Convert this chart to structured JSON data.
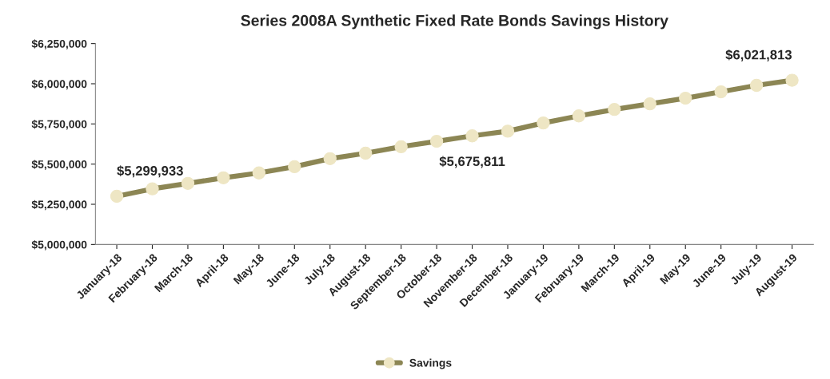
{
  "chart_data": {
    "type": "line",
    "title": "Series 2008A Synthetic Fixed Rate Bonds Savings History",
    "categories": [
      "January-18",
      "February-18",
      "March-18",
      "April-18",
      "May-18",
      "June-18",
      "July-18",
      "August-18",
      "September-18",
      "October-18",
      "November-18",
      "December-18",
      "January-19",
      "February-19",
      "March-19",
      "April-19",
      "May-19",
      "June-19",
      "July-19",
      "August-19"
    ],
    "series": [
      {
        "name": "Savings",
        "color": "#8c8654",
        "values": [
          5299933,
          5346000,
          5380000,
          5415000,
          5445000,
          5484000,
          5534000,
          5568000,
          5608000,
          5642000,
          5675811,
          5705000,
          5756000,
          5800000,
          5840000,
          5875000,
          5910000,
          5950000,
          5990000,
          6021813
        ],
        "value_labels": [
          "$5,299,933",
          null,
          null,
          null,
          null,
          null,
          null,
          null,
          null,
          null,
          "$5,675,811",
          null,
          null,
          null,
          null,
          null,
          null,
          null,
          null,
          "$6,021,813"
        ]
      }
    ],
    "ylim": [
      5000000,
      6250000
    ],
    "yticks": [
      {
        "value": 5000000,
        "label": "$5,000,000"
      },
      {
        "value": 5250000,
        "label": "$5,250,000"
      },
      {
        "value": 5500000,
        "label": "$5,500,000"
      },
      {
        "value": 5750000,
        "label": "$5,750,000"
      },
      {
        "value": 6000000,
        "label": "$6,000,000"
      },
      {
        "value": 6250000,
        "label": "$6,250,000"
      }
    ],
    "marker": "circle",
    "line_style": "solid",
    "legend": "bottom",
    "grid": false
  }
}
